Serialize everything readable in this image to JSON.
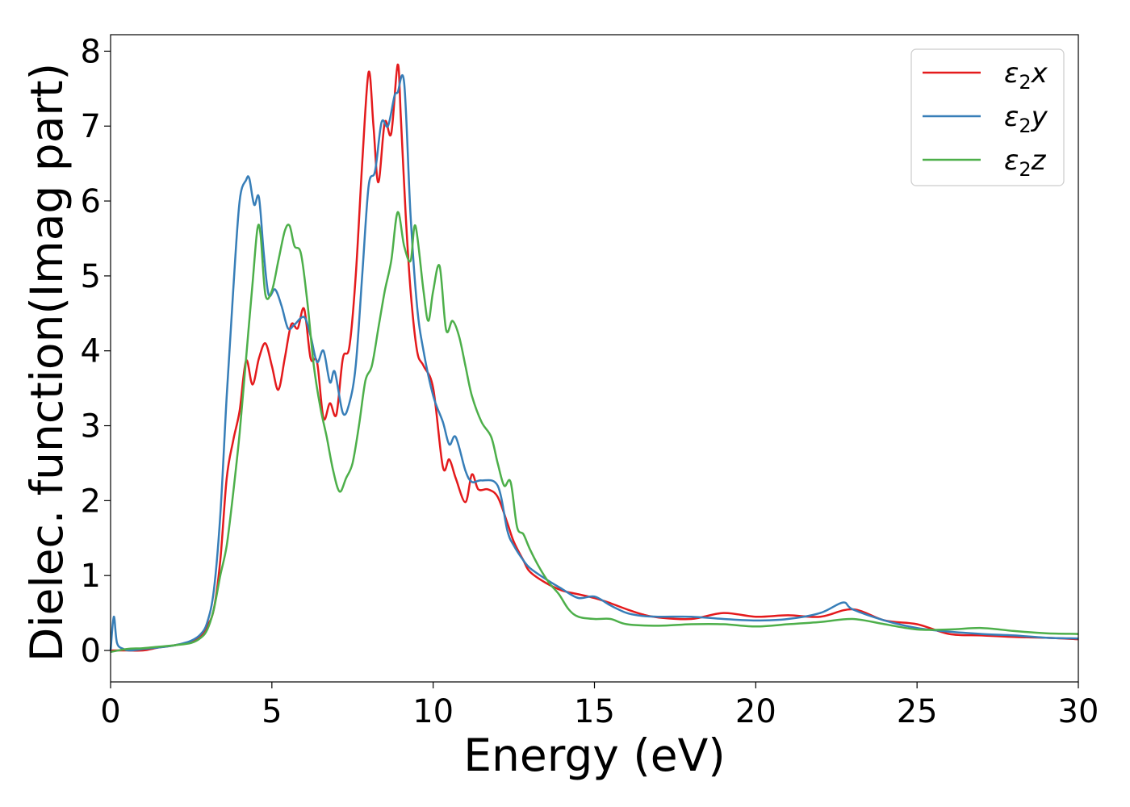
{
  "chart_data": {
    "type": "line",
    "xlabel": "Energy (eV)",
    "ylabel": "Dielec. function(Imag part)",
    "xlim": [
      0,
      30
    ],
    "ylim": [
      -0.42,
      8.22
    ],
    "xticks": [
      0,
      5,
      10,
      15,
      20,
      25,
      30
    ],
    "yticks": [
      0,
      1,
      2,
      3,
      4,
      5,
      6,
      7,
      8
    ],
    "grid": false,
    "legend_position": "top-right",
    "series": [
      {
        "name": "ε₂x",
        "legend_base": "ε",
        "legend_sub": "2",
        "legend_tail": "x",
        "color": "#e41a1c",
        "x": [
          0,
          0.5,
          1,
          1.5,
          2,
          2.5,
          2.8,
          3.0,
          3.2,
          3.4,
          3.6,
          3.8,
          4.0,
          4.2,
          4.4,
          4.6,
          4.8,
          5.0,
          5.2,
          5.4,
          5.6,
          5.8,
          6.0,
          6.2,
          6.4,
          6.6,
          6.8,
          7.0,
          7.2,
          7.4,
          7.6,
          7.8,
          8.0,
          8.15,
          8.3,
          8.5,
          8.7,
          8.9,
          9.0,
          9.15,
          9.3,
          9.5,
          9.7,
          10.0,
          10.3,
          10.5,
          10.7,
          11.0,
          11.2,
          11.4,
          11.7,
          12.0,
          12.3,
          12.5,
          12.8,
          13.0,
          13.5,
          14.0,
          14.5,
          15.0,
          15.5,
          16.0,
          16.5,
          17.0,
          18.0,
          19.0,
          20.0,
          21.0,
          22.0,
          23.0,
          24.0,
          25.0,
          26.0,
          27.0,
          28.0,
          29.0,
          30.0
        ],
        "y": [
          0.0,
          0.0,
          0.0,
          0.04,
          0.07,
          0.12,
          0.2,
          0.33,
          0.55,
          1.2,
          2.3,
          2.8,
          3.2,
          3.87,
          3.55,
          3.9,
          4.1,
          3.8,
          3.48,
          3.9,
          4.35,
          4.3,
          4.56,
          3.9,
          3.85,
          3.1,
          3.3,
          3.15,
          3.9,
          4.05,
          5.0,
          6.5,
          7.72,
          7.0,
          6.25,
          7.05,
          6.9,
          7.82,
          7.1,
          5.8,
          4.8,
          4.0,
          3.8,
          3.5,
          2.45,
          2.55,
          2.3,
          1.98,
          2.35,
          2.15,
          2.15,
          2.05,
          1.7,
          1.45,
          1.2,
          1.05,
          0.9,
          0.8,
          0.75,
          0.7,
          0.63,
          0.55,
          0.48,
          0.44,
          0.42,
          0.5,
          0.45,
          0.47,
          0.45,
          0.55,
          0.4,
          0.35,
          0.22,
          0.2,
          0.18,
          0.17,
          0.15
        ]
      },
      {
        "name": "ε₂y",
        "legend_base": "ε",
        "legend_sub": "2",
        "legend_tail": "y",
        "color": "#377eb8",
        "x": [
          0,
          0.1,
          0.2,
          0.4,
          0.6,
          1,
          1.5,
          2,
          2.5,
          2.8,
          3.0,
          3.2,
          3.4,
          3.6,
          3.8,
          4.0,
          4.2,
          4.3,
          4.45,
          4.6,
          4.75,
          4.9,
          5.1,
          5.3,
          5.5,
          5.7,
          6.0,
          6.2,
          6.4,
          6.6,
          6.8,
          6.95,
          7.2,
          7.4,
          7.6,
          7.8,
          8.0,
          8.2,
          8.4,
          8.6,
          8.8,
          8.9,
          9.1,
          9.3,
          9.5,
          9.7,
          10.0,
          10.3,
          10.5,
          10.7,
          11.0,
          11.2,
          11.5,
          12.0,
          12.3,
          12.5,
          12.8,
          13.0,
          13.5,
          14.0,
          14.5,
          15.0,
          15.5,
          16.0,
          16.5,
          17.0,
          18.0,
          19.0,
          20.0,
          21.0,
          22.0,
          22.7,
          23.0,
          24.0,
          25.0,
          26.0,
          27.0,
          28.0,
          29.0,
          30.0
        ],
        "y": [
          0.0,
          0.45,
          0.1,
          0.02,
          0.0,
          0.02,
          0.04,
          0.07,
          0.13,
          0.22,
          0.38,
          0.8,
          1.8,
          3.4,
          4.8,
          6.0,
          6.28,
          6.3,
          5.95,
          6.05,
          5.3,
          4.75,
          4.82,
          4.6,
          4.3,
          4.35,
          4.45,
          4.2,
          3.85,
          4.0,
          3.58,
          3.72,
          3.17,
          3.3,
          3.8,
          5.0,
          6.2,
          6.4,
          7.05,
          7.0,
          7.4,
          7.45,
          7.58,
          5.8,
          4.6,
          4.0,
          3.4,
          3.05,
          2.75,
          2.85,
          2.4,
          2.25,
          2.27,
          2.2,
          1.6,
          1.4,
          1.2,
          1.1,
          0.95,
          0.82,
          0.7,
          0.72,
          0.6,
          0.5,
          0.46,
          0.45,
          0.45,
          0.42,
          0.4,
          0.42,
          0.5,
          0.64,
          0.55,
          0.4,
          0.3,
          0.25,
          0.22,
          0.2,
          0.17,
          0.16
        ]
      },
      {
        "name": "ε₂z",
        "legend_base": "ε",
        "legend_sub": "2",
        "legend_tail": "z",
        "color": "#4daf4a",
        "x": [
          0,
          0.5,
          1,
          1.5,
          2,
          2.5,
          2.8,
          3.0,
          3.2,
          3.4,
          3.6,
          3.8,
          4.0,
          4.2,
          4.4,
          4.55,
          4.65,
          4.8,
          5.0,
          5.2,
          5.4,
          5.55,
          5.7,
          5.9,
          6.1,
          6.3,
          6.5,
          6.7,
          6.9,
          7.1,
          7.3,
          7.5,
          7.7,
          7.9,
          8.1,
          8.3,
          8.5,
          8.7,
          8.9,
          9.1,
          9.3,
          9.45,
          9.7,
          9.85,
          10.0,
          10.2,
          10.4,
          10.6,
          10.8,
          11.0,
          11.2,
          11.5,
          11.8,
          12.0,
          12.2,
          12.4,
          12.6,
          12.8,
          13.0,
          13.3,
          13.6,
          13.9,
          14.2,
          14.5,
          15.0,
          15.5,
          16.0,
          17.0,
          18.0,
          19.0,
          20.0,
          21.0,
          22.0,
          23.0,
          24.0,
          25.0,
          26.0,
          27.0,
          28.0,
          29.0,
          30.0
        ],
        "y": [
          -0.02,
          0.02,
          0.03,
          0.05,
          0.07,
          0.1,
          0.17,
          0.28,
          0.55,
          1.0,
          1.4,
          2.1,
          2.9,
          3.9,
          4.9,
          5.62,
          5.55,
          4.75,
          4.8,
          5.2,
          5.6,
          5.67,
          5.4,
          5.3,
          4.65,
          3.8,
          3.25,
          2.85,
          2.4,
          2.12,
          2.3,
          2.5,
          3.0,
          3.6,
          3.8,
          4.3,
          4.8,
          5.2,
          5.85,
          5.4,
          5.2,
          5.67,
          4.8,
          4.4,
          4.8,
          5.13,
          4.28,
          4.4,
          4.2,
          3.8,
          3.4,
          3.05,
          2.85,
          2.5,
          2.2,
          2.25,
          1.65,
          1.55,
          1.35,
          1.1,
          0.9,
          0.75,
          0.55,
          0.45,
          0.42,
          0.42,
          0.35,
          0.33,
          0.35,
          0.35,
          0.32,
          0.35,
          0.38,
          0.42,
          0.35,
          0.28,
          0.28,
          0.3,
          0.26,
          0.23,
          0.22
        ]
      }
    ]
  }
}
